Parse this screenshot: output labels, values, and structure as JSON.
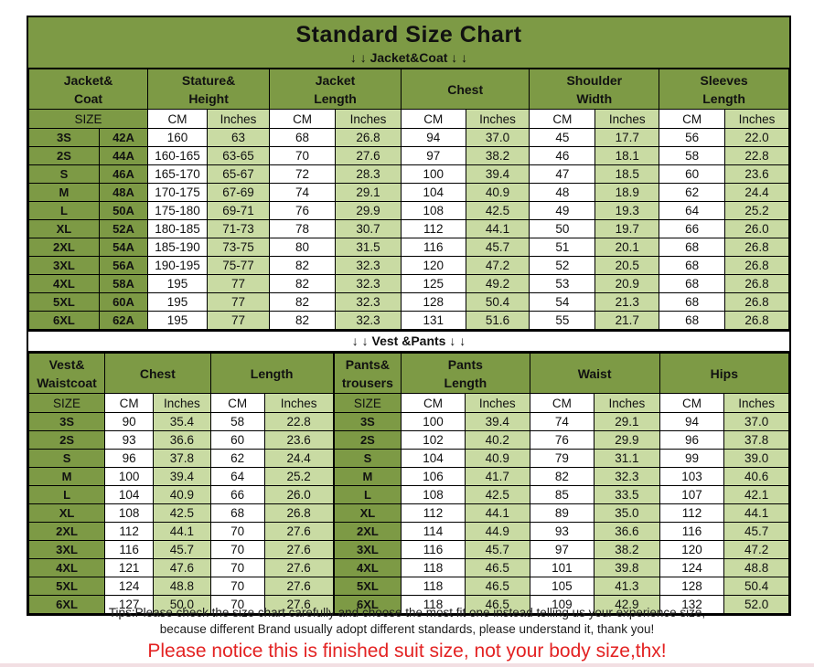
{
  "title": "Standard Size Chart",
  "colors": {
    "table_green": "#7d9a45",
    "light_green": "#c9dba3",
    "border_black": "#000000",
    "notice_red": "#e32222"
  },
  "units": {
    "size": "SIZE",
    "cm": "CM",
    "inches": "Inches"
  },
  "banners": {
    "jacket": "↓ ↓  Jacket&Coat ↓ ↓",
    "vest": "↓ ↓  Vest &Pants ↓ ↓"
  },
  "chart_data": [
    {
      "type": "table",
      "name": "jacket_coat_size_table",
      "group_headers": [
        "Jacket&\nCoat",
        "Stature&\nHeight",
        "Jacket\nLength",
        "Chest",
        "Shoulder\nWidth",
        "Sleeves\nLength"
      ],
      "sub_headers": [
        "SIZE",
        "CM",
        "Inches",
        "CM",
        "Inches",
        "CM",
        "Inches",
        "CM",
        "Inches",
        "CM",
        "Inches"
      ],
      "rows": [
        [
          "3S",
          "42A",
          "160",
          "63",
          "68",
          "26.8",
          "94",
          "37.0",
          "45",
          "17.7",
          "56",
          "22.0"
        ],
        [
          "2S",
          "44A",
          "160-165",
          "63-65",
          "70",
          "27.6",
          "97",
          "38.2",
          "46",
          "18.1",
          "58",
          "22.8"
        ],
        [
          "S",
          "46A",
          "165-170",
          "65-67",
          "72",
          "28.3",
          "100",
          "39.4",
          "47",
          "18.5",
          "60",
          "23.6"
        ],
        [
          "M",
          "48A",
          "170-175",
          "67-69",
          "74",
          "29.1",
          "104",
          "40.9",
          "48",
          "18.9",
          "62",
          "24.4"
        ],
        [
          "L",
          "50A",
          "175-180",
          "69-71",
          "76",
          "29.9",
          "108",
          "42.5",
          "49",
          "19.3",
          "64",
          "25.2"
        ],
        [
          "XL",
          "52A",
          "180-185",
          "71-73",
          "78",
          "30.7",
          "112",
          "44.1",
          "50",
          "19.7",
          "66",
          "26.0"
        ],
        [
          "2XL",
          "54A",
          "185-190",
          "73-75",
          "80",
          "31.5",
          "116",
          "45.7",
          "51",
          "20.1",
          "68",
          "26.8"
        ],
        [
          "3XL",
          "56A",
          "190-195",
          "75-77",
          "82",
          "32.3",
          "120",
          "47.2",
          "52",
          "20.5",
          "68",
          "26.8"
        ],
        [
          "4XL",
          "58A",
          "195",
          "77",
          "82",
          "32.3",
          "125",
          "49.2",
          "53",
          "20.9",
          "68",
          "26.8"
        ],
        [
          "5XL",
          "60A",
          "195",
          "77",
          "82",
          "32.3",
          "128",
          "50.4",
          "54",
          "21.3",
          "68",
          "26.8"
        ],
        [
          "6XL",
          "62A",
          "195",
          "77",
          "82",
          "32.3",
          "131",
          "51.6",
          "55",
          "21.7",
          "68",
          "26.8"
        ]
      ]
    },
    {
      "type": "table",
      "name": "vest_pants_size_table",
      "group_headers": [
        "Vest&\nWaistcoat",
        "Chest",
        "Length",
        "Pants&\ntrousers",
        "Pants\nLength",
        "Waist",
        "Hips"
      ],
      "sub_headers": [
        "SIZE",
        "CM",
        "Inches",
        "CM",
        "Inches",
        "SIZE",
        "CM",
        "Inches",
        "CM",
        "Inches",
        "CM",
        "Inches"
      ],
      "rows": [
        [
          "3S",
          "90",
          "35.4",
          "58",
          "22.8",
          "3S",
          "100",
          "39.4",
          "74",
          "29.1",
          "94",
          "37.0"
        ],
        [
          "2S",
          "93",
          "36.6",
          "60",
          "23.6",
          "2S",
          "102",
          "40.2",
          "76",
          "29.9",
          "96",
          "37.8"
        ],
        [
          "S",
          "96",
          "37.8",
          "62",
          "24.4",
          "S",
          "104",
          "40.9",
          "79",
          "31.1",
          "99",
          "39.0"
        ],
        [
          "M",
          "100",
          "39.4",
          "64",
          "25.2",
          "M",
          "106",
          "41.7",
          "82",
          "32.3",
          "103",
          "40.6"
        ],
        [
          "L",
          "104",
          "40.9",
          "66",
          "26.0",
          "L",
          "108",
          "42.5",
          "85",
          "33.5",
          "107",
          "42.1"
        ],
        [
          "XL",
          "108",
          "42.5",
          "68",
          "26.8",
          "XL",
          "112",
          "44.1",
          "89",
          "35.0",
          "112",
          "44.1"
        ],
        [
          "2XL",
          "112",
          "44.1",
          "70",
          "27.6",
          "2XL",
          "114",
          "44.9",
          "93",
          "36.6",
          "116",
          "45.7"
        ],
        [
          "3XL",
          "116",
          "45.7",
          "70",
          "27.6",
          "3XL",
          "116",
          "45.7",
          "97",
          "38.2",
          "120",
          "47.2"
        ],
        [
          "4XL",
          "121",
          "47.6",
          "70",
          "27.6",
          "4XL",
          "118",
          "46.5",
          "101",
          "39.8",
          "124",
          "48.8"
        ],
        [
          "5XL",
          "124",
          "48.8",
          "70",
          "27.6",
          "5XL",
          "118",
          "46.5",
          "105",
          "41.3",
          "128",
          "50.4"
        ],
        [
          "6XL",
          "127",
          "50.0",
          "70",
          "27.6",
          "6XL",
          "118",
          "46.5",
          "109",
          "42.9",
          "132",
          "52.0"
        ]
      ]
    }
  ],
  "tips": {
    "line1": "Tips:Please check the size chart carefully and choose the most fit one instead telling us your experience size,",
    "line2": "because different Brand usually adopt different standards, please understand it, thank you!",
    "notice": "Please notice this is finished suit size, not your body size,thx!"
  }
}
